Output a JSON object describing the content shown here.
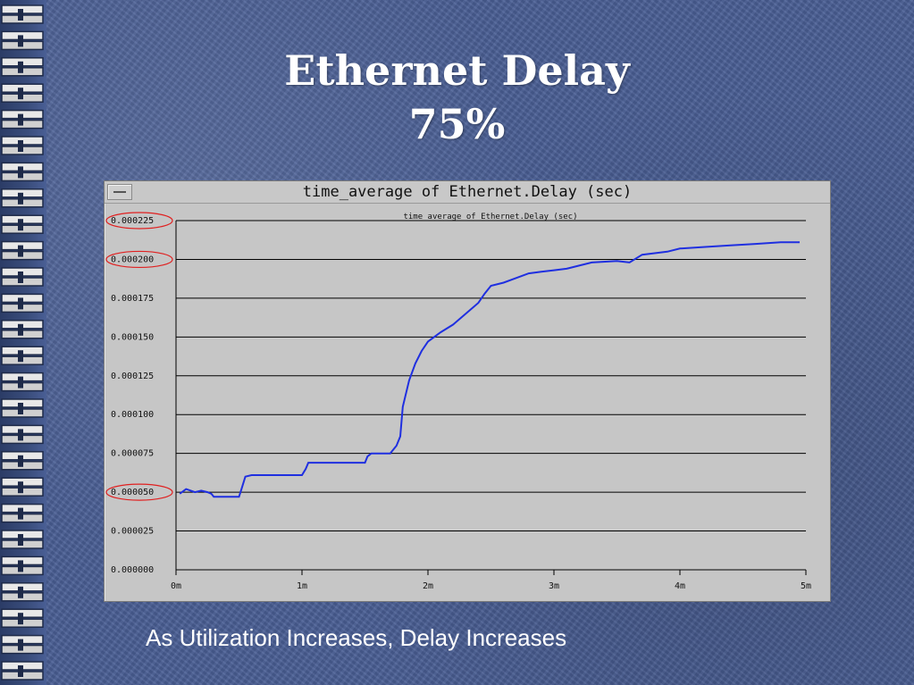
{
  "slide": {
    "title": "Ethernet Delay",
    "subtitle": "75%",
    "caption": "As Utilization Increases, Delay Increases"
  },
  "window": {
    "title": "time_average of Ethernet.Delay (sec)",
    "menu_icon": "window-menu-icon"
  },
  "colors": {
    "background": "#4a5f95",
    "line": "#1f2fe0",
    "highlight_circle": "#e02020",
    "gridline": "#000000"
  },
  "chart_data": {
    "type": "line",
    "title": "time_average of Ethernet.Delay (sec)",
    "xlabel": "",
    "ylabel": "",
    "xlim": [
      0,
      5
    ],
    "ylim": [
      0,
      0.000225
    ],
    "x_ticks": [
      0,
      1,
      2,
      3,
      4,
      5
    ],
    "x_tick_labels": [
      "0m",
      "1m",
      "2m",
      "3m",
      "4m",
      "5m"
    ],
    "y_ticks": [
      0,
      2.5e-05,
      5e-05,
      7.5e-05,
      0.0001,
      0.000125,
      0.00015,
      0.000175,
      0.0002,
      0.000225
    ],
    "y_tick_labels": [
      "0.000000",
      "0.000025",
      "0.000050",
      "0.000075",
      "0.000100",
      "0.000125",
      "0.000150",
      "0.000175",
      "0.000200",
      "0.000225"
    ],
    "highlighted_ticks": [
      "0.000225",
      "0.000200",
      "0.000050"
    ],
    "grid": true,
    "legend": "none",
    "series": [
      {
        "x": [
          0.03,
          0.08,
          0.15,
          0.2,
          0.25,
          0.28,
          0.3,
          0.35,
          0.45,
          0.5,
          0.52,
          0.55,
          0.6,
          0.8,
          1.0,
          1.03,
          1.05,
          1.1,
          1.5,
          1.52,
          1.55,
          1.7,
          1.75,
          1.78,
          1.8,
          1.85,
          1.9,
          1.95,
          2.0,
          2.05,
          2.1,
          2.2,
          2.3,
          2.4,
          2.45,
          2.5,
          2.6,
          2.7,
          2.8,
          2.9,
          3.0,
          3.1,
          3.2,
          3.3,
          3.5,
          3.6,
          3.7,
          3.8,
          3.9,
          4.0,
          4.2,
          4.4,
          4.6,
          4.8,
          4.95
        ],
        "y": [
          4.9e-05,
          5.2e-05,
          5e-05,
          5.1e-05,
          5e-05,
          4.9e-05,
          4.7e-05,
          4.7e-05,
          4.7e-05,
          4.7e-05,
          5.2e-05,
          6e-05,
          6.1e-05,
          6.1e-05,
          6.1e-05,
          6.5e-05,
          6.9e-05,
          6.9e-05,
          6.9e-05,
          7.3e-05,
          7.5e-05,
          7.5e-05,
          8e-05,
          8.6e-05,
          0.000105,
          0.000122,
          0.000133,
          0.000141,
          0.000147,
          0.00015,
          0.000153,
          0.000158,
          0.000165,
          0.000172,
          0.000178,
          0.000183,
          0.000185,
          0.000188,
          0.000191,
          0.000192,
          0.000193,
          0.000194,
          0.000196,
          0.000198,
          0.000199,
          0.000198,
          0.000203,
          0.000204,
          0.000205,
          0.000207,
          0.000208,
          0.000209,
          0.00021,
          0.000211,
          0.000211
        ]
      }
    ]
  }
}
